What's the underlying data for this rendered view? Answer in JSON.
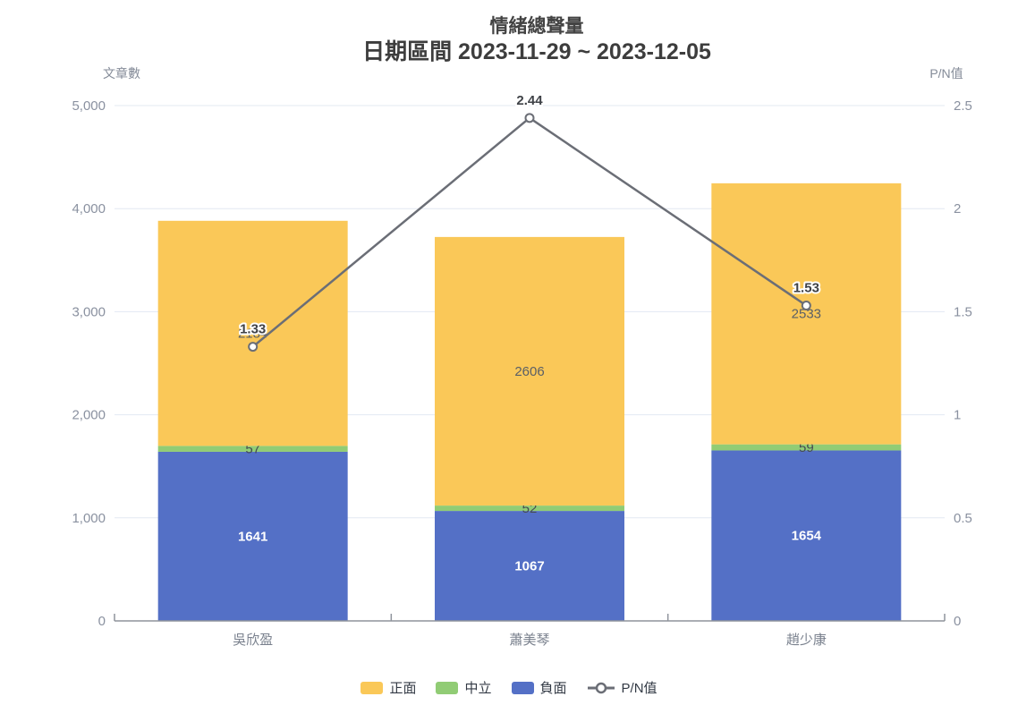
{
  "chart_data": {
    "type": "bar",
    "title_lines": [
      "情緒總聲量",
      "日期區間 2023-11-29 ~ 2023-12-05"
    ],
    "categories": [
      "吳欣盈",
      "蕭美琴",
      "趙少康"
    ],
    "series": [
      {
        "key": "negative",
        "name": "負面",
        "type": "bar",
        "stack": "sentiment",
        "color": "#5470C6",
        "label_color": "#ffffff",
        "label_bold": true,
        "values": [
          1641,
          1067,
          1654
        ]
      },
      {
        "key": "neutral",
        "name": "中立",
        "type": "bar",
        "stack": "sentiment",
        "color": "#91CC75",
        "label_color": "#464b52",
        "label_bold": false,
        "values": [
          57,
          52,
          59
        ]
      },
      {
        "key": "positive",
        "name": "正面",
        "type": "bar",
        "stack": "sentiment",
        "color": "#FAC858",
        "label_color": "#5a5f66",
        "label_bold": false,
        "values": [
          2184,
          2606,
          2533
        ]
      },
      {
        "key": "pn-ratio",
        "name": "P/N值",
        "type": "line",
        "axis": "right",
        "color": "#6b6e76",
        "label_color": "#3f4247",
        "label_bold": true,
        "values": [
          1.33,
          2.44,
          1.53
        ]
      }
    ],
    "left_axis": {
      "name": "文章數",
      "min": 0,
      "max": 5000,
      "tick_values": [
        0,
        1000,
        2000,
        3000,
        4000,
        5000
      ],
      "tick_labels": [
        "0",
        "1,000",
        "2,000",
        "3,000",
        "4,000",
        "5,000"
      ]
    },
    "right_axis": {
      "name": "P/N值",
      "min": 0,
      "max": 2.5,
      "tick_values": [
        0,
        0.5,
        1,
        1.5,
        2,
        2.5
      ],
      "tick_labels": [
        "0",
        "0.5",
        "1",
        "1.5",
        "2",
        "2.5"
      ]
    },
    "legend": [
      {
        "key": "positive",
        "label": "正面",
        "swatch": "rect",
        "color": "#FAC858"
      },
      {
        "key": "neutral",
        "label": "中立",
        "swatch": "rect",
        "color": "#91CC75"
      },
      {
        "key": "negative",
        "label": "負面",
        "swatch": "rect",
        "color": "#5470C6"
      },
      {
        "key": "pn-ratio",
        "label": "P/N值",
        "swatch": "line",
        "color": "#6b6e76"
      }
    ],
    "legend_position": "bottom",
    "grid": true,
    "colors": {
      "grid_line": "#e3e8f2",
      "axis_line": "#8f949c",
      "tick_label": "#8a91a0",
      "category_label": "#79808d"
    }
  }
}
